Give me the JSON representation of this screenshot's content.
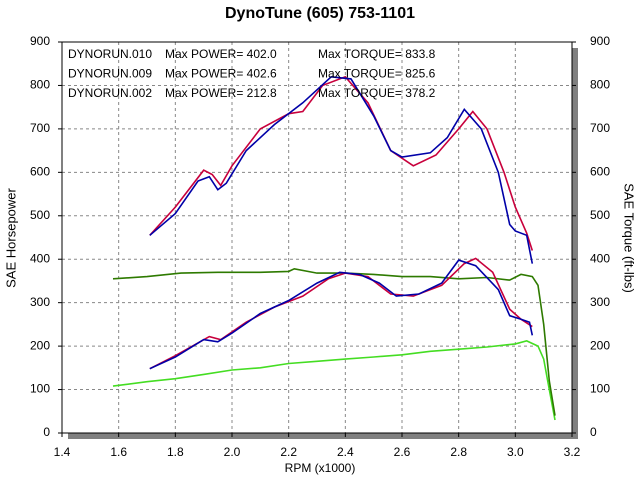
{
  "chart_data": {
    "type": "line",
    "title": "DynoTune  (605) 753-1101",
    "x_label": "RPM (x1000)",
    "y_label": "SAE Horsepower",
    "y2_label": "SAE Torque (ft-lbs)",
    "xlim": [
      1.4,
      3.2
    ],
    "xticks": [
      1.4,
      1.6,
      1.8,
      {
        "value": 2,
        "label": "2.0"
      },
      2.2,
      2.4,
      2.6,
      2.8,
      {
        "value": 3,
        "label": "3.0"
      },
      3.2
    ],
    "ylim": [
      0,
      900
    ],
    "yticks": [
      0,
      100,
      200,
      300,
      400,
      500,
      600,
      700,
      800,
      900
    ],
    "y2lim": [
      0,
      900
    ],
    "y2ticks": [
      0,
      100,
      200,
      300,
      400,
      500,
      600,
      700,
      800,
      900
    ],
    "grid": true,
    "series": [
      {
        "name": "DYNORUN.010",
        "color": "#0000a8",
        "torque_color": "#0000a8",
        "power_label": "Max POWER= 402.0",
        "torque_label": "Max TORQUE= 833.8",
        "power_x": [
          1.71,
          1.8,
          1.9,
          1.95,
          2.0,
          2.1,
          2.2,
          2.3,
          2.38,
          2.45,
          2.52,
          2.58,
          2.66,
          2.74,
          2.8,
          2.86,
          2.94,
          2.98,
          3.02,
          3.05,
          3.06
        ],
        "power": [
          148,
          175,
          215,
          210,
          230,
          275,
          305,
          345,
          370,
          365,
          345,
          315,
          320,
          345,
          398,
          385,
          330,
          270,
          262,
          255,
          225
        ],
        "torque_x": [
          1.71,
          1.8,
          1.88,
          1.92,
          1.95,
          1.98,
          2.05,
          2.15,
          2.25,
          2.35,
          2.42,
          2.5,
          2.56,
          2.6,
          2.7,
          2.76,
          2.82,
          2.88,
          2.94,
          2.98,
          3.0,
          3.04,
          3.06
        ],
        "torque": [
          455,
          505,
          580,
          590,
          560,
          575,
          650,
          710,
          760,
          820,
          815,
          730,
          650,
          635,
          645,
          680,
          745,
          700,
          600,
          480,
          465,
          455,
          390
        ]
      },
      {
        "name": "DYNORUN.009",
        "color": "#c8003c",
        "torque_color": "#c8003c",
        "power_label": "Max POWER= 402.6",
        "torque_label": "Max TORQUE= 825.6",
        "power_x": [
          1.71,
          1.8,
          1.92,
          1.96,
          2.05,
          2.15,
          2.25,
          2.34,
          2.4,
          2.48,
          2.56,
          2.64,
          2.74,
          2.82,
          2.86,
          2.92,
          2.98,
          3.02,
          3.06
        ],
        "power": [
          148,
          178,
          222,
          215,
          255,
          290,
          315,
          355,
          368,
          360,
          320,
          315,
          340,
          390,
          402,
          370,
          285,
          262,
          245
        ],
        "torque_x": [
          1.71,
          1.8,
          1.9,
          1.93,
          1.96,
          2.0,
          2.1,
          2.2,
          2.25,
          2.32,
          2.4,
          2.48,
          2.56,
          2.64,
          2.72,
          2.8,
          2.85,
          2.9,
          2.96,
          3.0,
          3.04,
          3.06
        ],
        "torque": [
          455,
          520,
          605,
          595,
          570,
          615,
          700,
          735,
          740,
          800,
          820,
          760,
          650,
          615,
          640,
          700,
          740,
          700,
          600,
          520,
          460,
          420
        ]
      },
      {
        "name": "DYNORUN.002",
        "color": "#44dd22",
        "torque_color": "#2e7a00",
        "power_label": "Max POWER= 212.8",
        "torque_label": "Max TORQUE= 378.2",
        "power_x": [
          1.58,
          1.7,
          1.8,
          1.9,
          2.0,
          2.1,
          2.2,
          2.3,
          2.4,
          2.5,
          2.6,
          2.7,
          2.8,
          2.9,
          3.0,
          3.04,
          3.08,
          3.1,
          3.12,
          3.14
        ],
        "power": [
          108,
          118,
          125,
          135,
          145,
          150,
          160,
          165,
          170,
          175,
          180,
          188,
          193,
          198,
          205,
          212,
          200,
          170,
          100,
          30
        ],
        "torque_x": [
          1.58,
          1.7,
          1.82,
          1.95,
          2.1,
          2.2,
          2.22,
          2.3,
          2.4,
          2.5,
          2.6,
          2.7,
          2.8,
          2.9,
          2.98,
          3.02,
          3.06,
          3.08,
          3.1,
          3.12,
          3.14
        ],
        "torque": [
          355,
          360,
          368,
          370,
          370,
          372,
          378,
          368,
          368,
          365,
          360,
          360,
          355,
          358,
          352,
          365,
          360,
          340,
          250,
          120,
          40
        ]
      }
    ]
  }
}
